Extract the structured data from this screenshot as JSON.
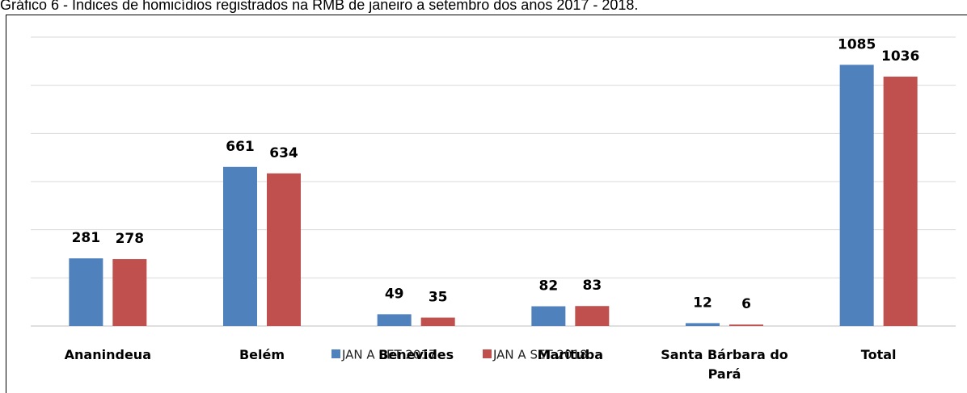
{
  "chart_data": {
    "type": "bar",
    "title": "Gráfico 6 - Índices de homicídios registrados na RMB de janeiro a setembro dos anos 2017 - 2018.",
    "categories": [
      "Ananindeua",
      "Belém",
      "Benevides",
      "Marituba",
      "Santa Bárbara do Pará",
      "Total"
    ],
    "series": [
      {
        "name": "JAN A SET 2017",
        "color": "#4f81bd",
        "values": [
          281,
          661,
          49,
          82,
          12,
          1085
        ]
      },
      {
        "name": "JAN A SET 2018",
        "color": "#c0504d",
        "values": [
          278,
          634,
          35,
          83,
          6,
          1036
        ]
      }
    ],
    "ylim": [
      0,
      1200
    ],
    "yticks": [
      0,
      200,
      400,
      600,
      800,
      1000,
      1200
    ],
    "grid": true
  }
}
